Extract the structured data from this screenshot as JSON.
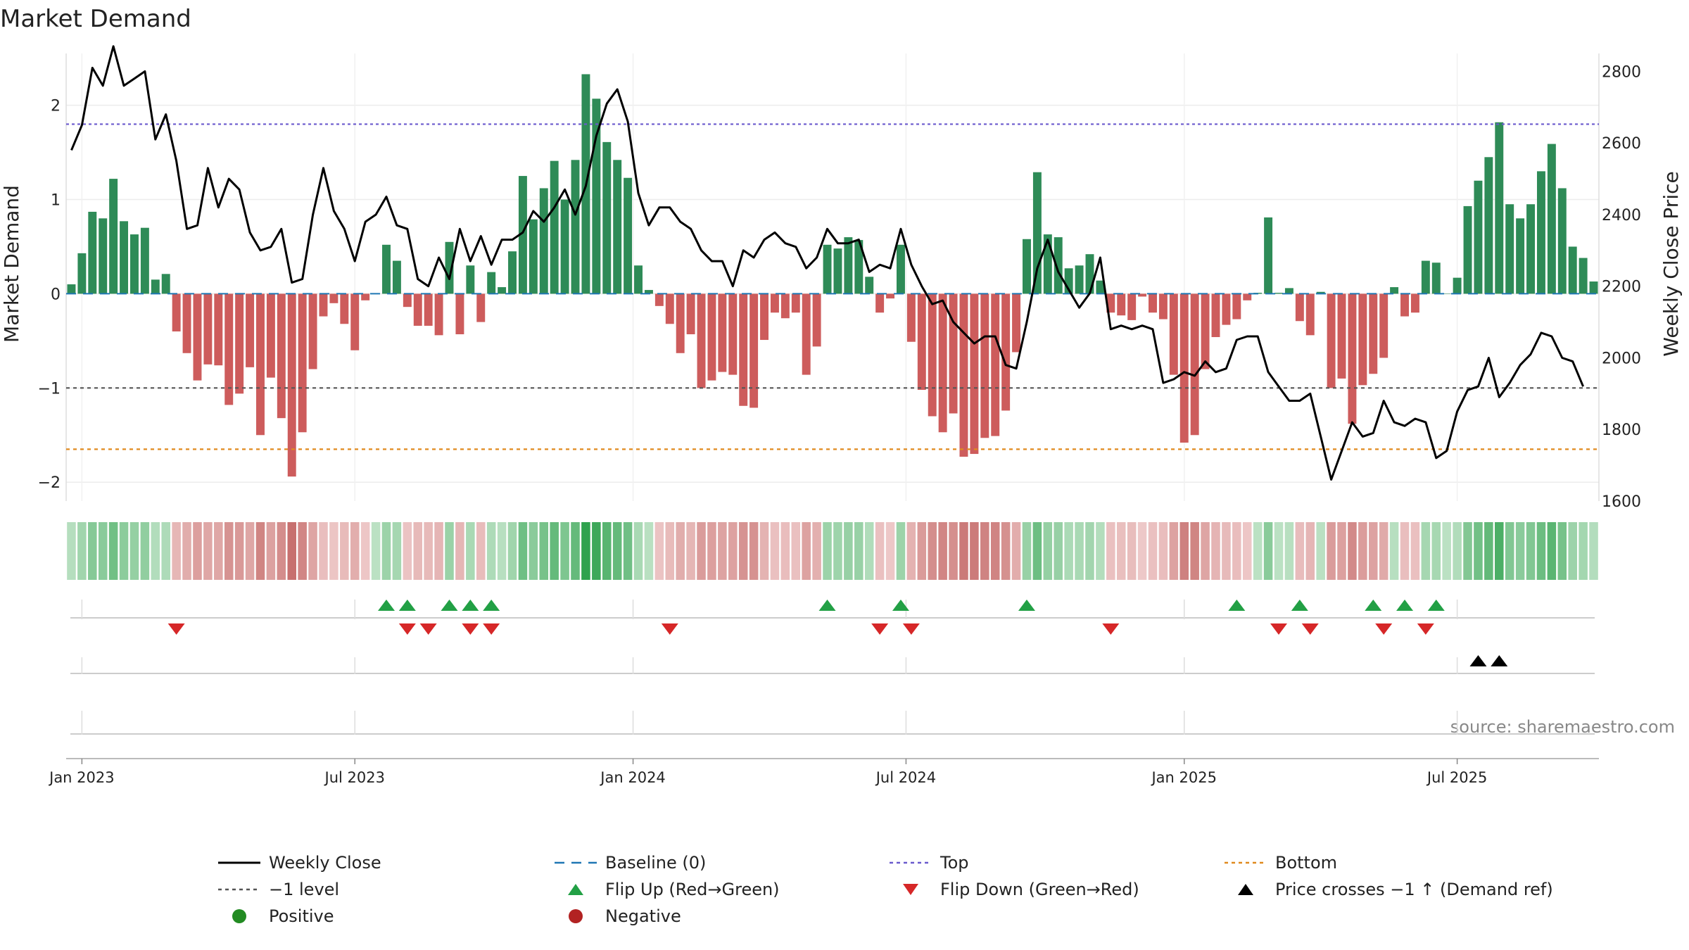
{
  "chart_data": {
    "type": "bar",
    "title": "Market Demand",
    "ylabel_left": "Market Demand",
    "ylabel_right": "Weekly Close Price",
    "source": "source: sharemaestro.com",
    "ylim_left": [
      -2.2,
      2.55
    ],
    "ylim_right": [
      1600,
      2850
    ],
    "yticks_left": [
      2,
      1,
      0,
      -1,
      -2
    ],
    "yticks_right": [
      2800,
      2600,
      2400,
      2200,
      2000,
      1800,
      1600
    ],
    "ytick_labels_left": [
      "2",
      "1",
      "0",
      "−1",
      "−2"
    ],
    "ytick_labels_right": [
      "2800",
      "2600",
      "2400",
      "2200",
      "2000",
      "1800",
      "1600"
    ],
    "xticks": [
      {
        "label": "Jan 2023",
        "week": 1.5
      },
      {
        "label": "Jul 2023",
        "week": 27.5
      },
      {
        "label": "Jan 2024",
        "week": 54
      },
      {
        "label": "Jul 2024",
        "week": 80
      },
      {
        "label": "Jan 2025",
        "week": 106.5
      },
      {
        "label": "Jul 2025",
        "week": 132.5
      }
    ],
    "reference_lines": {
      "baseline": 0,
      "top": 1.8,
      "minus_one": -1,
      "bottom": -1.65
    },
    "colors": {
      "positive_bar": "#2e8b57",
      "negative_bar": "#cd5c5c",
      "close_line": "#000000",
      "baseline": "#1f77b4",
      "top": "#6a5acd",
      "minus_one": "#555555",
      "bottom": "#e08a1e",
      "flip_up": "#22a045",
      "flip_down": "#d62728",
      "cross": "#000000",
      "positive_dot": "#228b22",
      "negative_dot": "#b22222"
    },
    "demand": [
      0.1,
      0.43,
      0.87,
      0.8,
      1.22,
      0.77,
      0.63,
      0.7,
      0.15,
      0.21,
      -0.4,
      -0.63,
      -0.92,
      -0.75,
      -0.76,
      -1.18,
      -1.06,
      -0.78,
      -1.5,
      -0.89,
      -1.32,
      -1.94,
      -1.47,
      -0.8,
      -0.24,
      -0.1,
      -0.32,
      -0.6,
      -0.07,
      0.0,
      0.52,
      0.35,
      -0.14,
      -0.34,
      -0.34,
      -0.44,
      0.55,
      -0.43,
      0.3,
      -0.3,
      0.23,
      0.07,
      0.45,
      1.25,
      0.79,
      1.12,
      1.41,
      1.0,
      1.42,
      2.33,
      2.07,
      1.61,
      1.42,
      1.23,
      0.3,
      0.04,
      -0.13,
      -0.32,
      -0.63,
      -0.43,
      -1.0,
      -0.92,
      -0.83,
      -0.86,
      -1.19,
      -1.21,
      -0.49,
      -0.2,
      -0.26,
      -0.2,
      -0.86,
      -0.56,
      0.52,
      0.48,
      0.6,
      0.57,
      0.18,
      -0.2,
      -0.05,
      0.52,
      -0.51,
      -1.02,
      -1.3,
      -1.47,
      -1.27,
      -1.73,
      -1.7,
      -1.53,
      -1.51,
      -1.24,
      -0.62,
      0.58,
      1.29,
      0.63,
      0.6,
      0.27,
      0.3,
      0.42,
      0.14,
      -0.2,
      -0.23,
      -0.28,
      -0.03,
      -0.2,
      -0.27,
      -0.86,
      -1.58,
      -1.5,
      -0.8,
      -0.46,
      -0.33,
      -0.27,
      -0.07,
      0.01,
      0.81,
      0.01,
      0.06,
      -0.29,
      -0.44,
      0.02,
      -1.0,
      -0.9,
      -1.38,
      -0.97,
      -0.85,
      -0.68,
      0.07,
      -0.24,
      -0.2,
      0.35,
      0.33,
      0.0,
      0.17,
      0.93,
      1.2,
      1.45,
      1.82,
      0.95,
      0.8,
      0.95,
      1.3,
      1.59,
      1.12,
      0.5,
      0.38,
      0.13
    ],
    "weekly_close": [
      2580,
      2650,
      2810,
      2760,
      2870,
      2760,
      2780,
      2800,
      2610,
      2680,
      2550,
      2360,
      2370,
      2530,
      2420,
      2500,
      2470,
      2350,
      2300,
      2310,
      2360,
      2210,
      2220,
      2400,
      2530,
      2410,
      2360,
      2270,
      2380,
      2400,
      2450,
      2370,
      2360,
      2220,
      2200,
      2280,
      2220,
      2360,
      2270,
      2340,
      2260,
      2330,
      2330,
      2350,
      2410,
      2380,
      2420,
      2470,
      2400,
      2480,
      2620,
      2710,
      2750,
      2660,
      2460,
      2370,
      2420,
      2420,
      2380,
      2360,
      2300,
      2270,
      2270,
      2200,
      2300,
      2280,
      2330,
      2350,
      2320,
      2310,
      2250,
      2280,
      2360,
      2320,
      2320,
      2330,
      2240,
      2260,
      2250,
      2360,
      2260,
      2200,
      2150,
      2160,
      2100,
      2070,
      2040,
      2060,
      2060,
      1980,
      1970,
      2100,
      2250,
      2330,
      2240,
      2190,
      2140,
      2180,
      2280,
      2080,
      2090,
      2080,
      2090,
      2080,
      1930,
      1940,
      1960,
      1950,
      1990,
      1960,
      1970,
      2050,
      2060,
      2060,
      1960,
      1920,
      1880,
      1880,
      1900,
      1780,
      1660,
      1740,
      1820,
      1780,
      1790,
      1880,
      1820,
      1810,
      1830,
      1820,
      1720,
      1740,
      1850,
      1910,
      1920,
      2000,
      1890,
      1930,
      1980,
      2010,
      2070,
      2060,
      2000,
      1990,
      1920
    ],
    "flip_up": [
      30,
      32,
      36,
      38,
      40,
      72,
      79,
      91,
      111,
      117,
      124,
      127,
      130
    ],
    "flip_down": [
      10,
      32,
      34,
      38,
      40,
      57,
      77,
      80,
      99,
      115,
      118,
      125,
      129
    ],
    "price_cross": [
      134,
      136
    ],
    "legend": [
      {
        "label": "Weekly Close",
        "symbol": "line-solid",
        "color": "#000000"
      },
      {
        "label": "Baseline (0)",
        "symbol": "line-dash",
        "color": "#1f77b4"
      },
      {
        "label": "Top",
        "symbol": "line-dot",
        "color": "#6a5acd"
      },
      {
        "label": "Bottom",
        "symbol": "line-dot",
        "color": "#e08a1e"
      },
      {
        "label": "−1 level",
        "symbol": "line-dot",
        "color": "#555555"
      },
      {
        "label": "Flip Up (Red→Green)",
        "symbol": "tri-up",
        "color": "#22a045"
      },
      {
        "label": "Flip Down (Green→Red)",
        "symbol": "tri-down",
        "color": "#d62728"
      },
      {
        "label": "Price crosses −1 ↑ (Demand ref)",
        "symbol": "tri-up",
        "color": "#000000"
      },
      {
        "label": "Positive",
        "symbol": "dot",
        "color": "#228b22"
      },
      {
        "label": "Negative",
        "symbol": "dot",
        "color": "#b22222"
      }
    ]
  }
}
